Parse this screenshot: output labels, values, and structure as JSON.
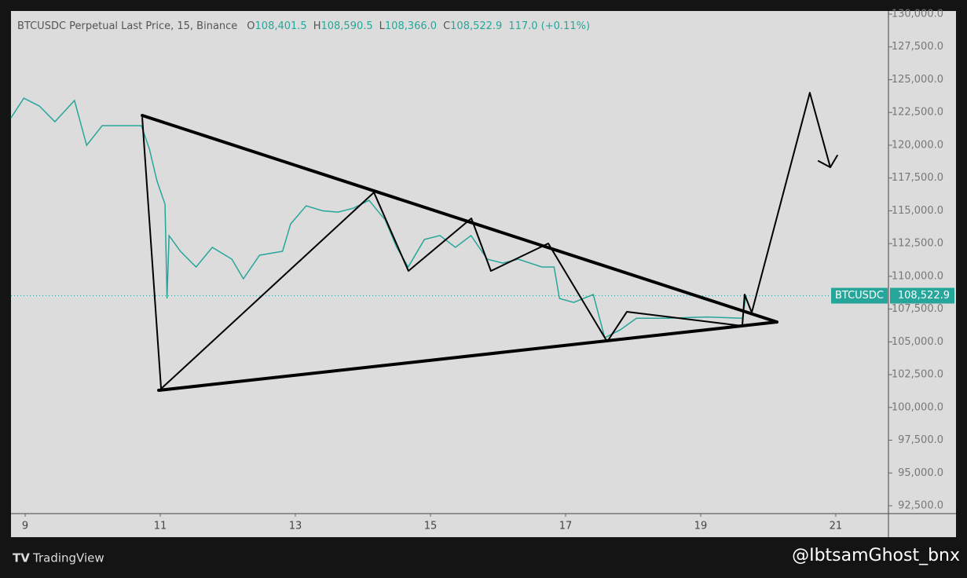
{
  "chart_data": {
    "type": "line",
    "title": "BTCUSDC Perpetual Last Price, 15, Binance",
    "ohlc": [
      {
        "key": "O",
        "text": "108,401.5"
      },
      {
        "key": "H",
        "text": "108,590.5"
      },
      {
        "key": "L",
        "text": "108,366.0"
      },
      {
        "key": "C",
        "text": "108,522.9"
      }
    ],
    "change": "117.0 (+0.11%)",
    "symbol": "BTCUSDC",
    "last_price": 108522.9,
    "last_price_label": "108,522.9",
    "x": [
      8.79,
      8.98,
      9.21,
      9.44,
      9.73,
      9.91,
      10.14,
      10.49,
      10.72,
      10.84,
      10.95,
      11.07,
      11.1,
      11.13,
      11.3,
      11.53,
      11.77,
      12.06,
      12.23,
      12.47,
      12.81,
      12.93,
      13.16,
      13.4,
      13.63,
      13.86,
      14.09,
      14.33,
      14.5,
      14.67,
      14.91,
      15.14,
      15.37,
      15.6,
      15.84,
      16.07,
      16.3,
      16.65,
      16.83,
      16.91,
      17.12,
      17.41,
      17.58,
      17.81,
      18.05,
      18.51,
      19.09,
      19.62,
      19.67
    ],
    "series": [
      {
        "name": "BTCUSDC",
        "color": "#26a69a",
        "values": [
          122092,
          123590,
          122990,
          121790,
          123410,
          119995,
          121490,
          121490,
          121490,
          119695,
          117300,
          115500,
          108310,
          113100,
          111900,
          110710,
          112210,
          111310,
          109810,
          111610,
          111910,
          114000,
          115380,
          115000,
          114900,
          115200,
          115800,
          114300,
          112210,
          110710,
          112810,
          113110,
          112210,
          113110,
          111310,
          111010,
          111310,
          110710,
          110710,
          108310,
          108010,
          108610,
          105320,
          105920,
          106800,
          106800,
          106900,
          106800,
          108522.9
        ]
      }
    ],
    "drawings": [
      {
        "x": [
          10.733,
          20.128
        ],
        "values": [
          122272,
          106515
        ],
        "width": 4
      },
      {
        "x": [
          10.977,
          20.128
        ],
        "values": [
          101303,
          106515
        ],
        "width": 4
      },
      {
        "x": [
          10.733,
          11.012,
          14.163,
          14.674,
          15.605,
          15.895,
          16.744,
          17.616,
          17.907,
          19.616,
          19.651,
          19.756,
          20.616,
          20.919
        ],
        "values": [
          122092,
          101423,
          116400,
          110410,
          114423,
          110410,
          112506,
          105017,
          107294,
          106216,
          108613,
          107235,
          124009,
          118318
        ],
        "width": 2
      },
      {
        "x": [
          20.744,
          20.919,
          21.023
        ],
        "values": [
          118797,
          118318,
          119216
        ],
        "width": 2
      }
    ],
    "xlim": [
      8.79,
      21.78
    ],
    "xticks": [
      9,
      11,
      13,
      15,
      17,
      19,
      21
    ],
    "ylim": [
      91900,
      130240
    ],
    "yticks": [
      {
        "value": 92500,
        "label": "92,500.0"
      },
      {
        "value": 95000,
        "label": "95,000.0"
      },
      {
        "value": 97500,
        "label": "97,500.0"
      },
      {
        "value": 100000,
        "label": "100,000.0"
      },
      {
        "value": 102500,
        "label": "102,500.0"
      },
      {
        "value": 105000,
        "label": "105,000.0"
      },
      {
        "value": 107500,
        "label": "107,500.0"
      },
      {
        "value": 110000,
        "label": "110,000.0"
      },
      {
        "value": 112500,
        "label": "112,500.0"
      },
      {
        "value": 115000,
        "label": "115,000.0"
      },
      {
        "value": 117500,
        "label": "117,500.0"
      },
      {
        "value": 120000,
        "label": "120,000.0"
      },
      {
        "value": 122500,
        "label": "122,500.0"
      },
      {
        "value": 125000,
        "label": "125,000.0"
      },
      {
        "value": 127500,
        "label": "127,500.0"
      },
      {
        "value": 130000,
        "label": "130,000.0"
      }
    ],
    "brand": "TradingView",
    "watermark": "@IbtsamGhost_bnx"
  }
}
